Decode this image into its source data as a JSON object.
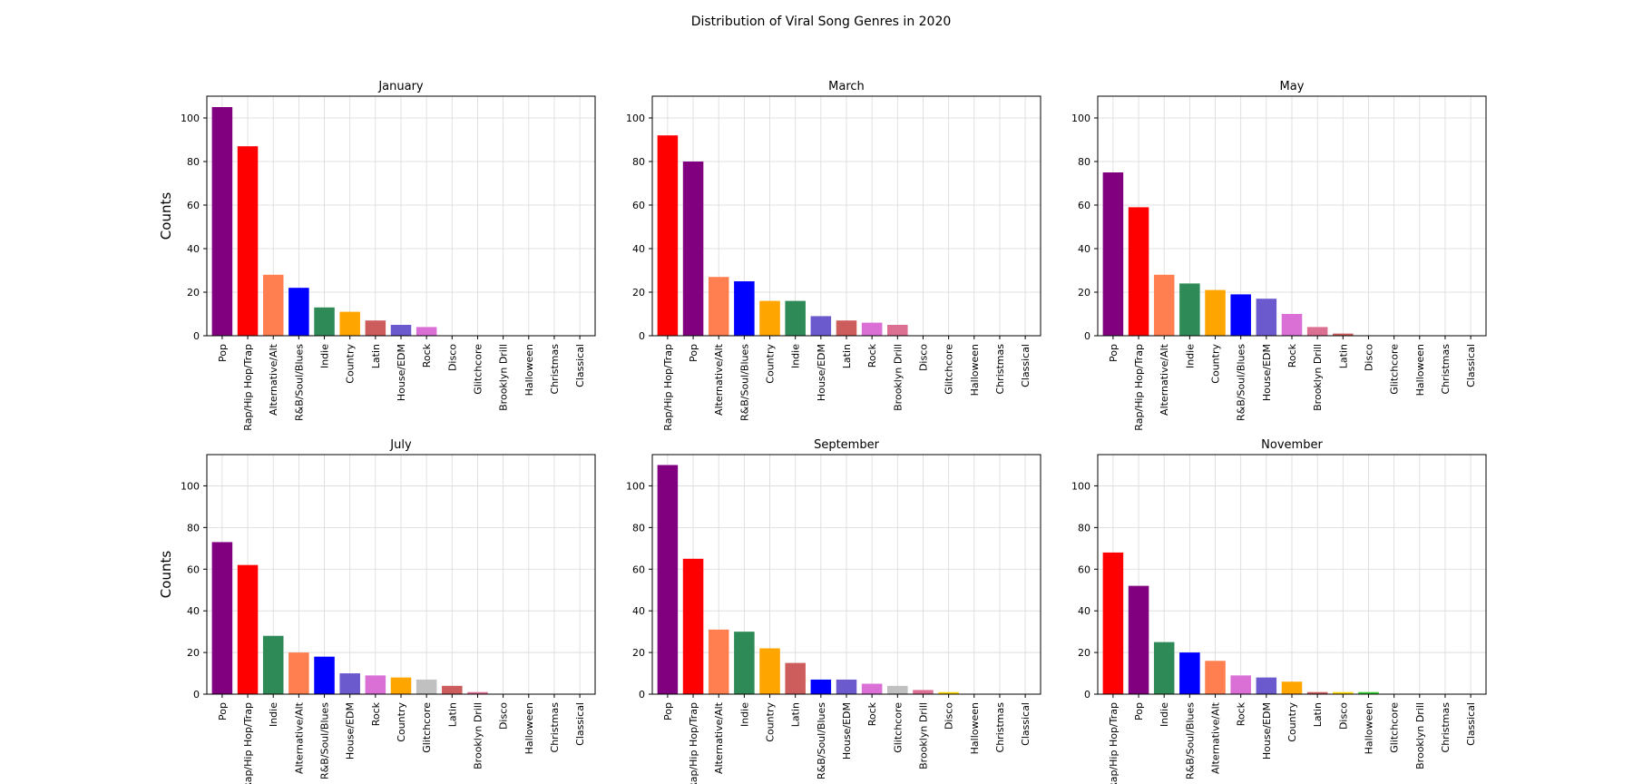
{
  "figure": {
    "title": "Distribution of Viral Song Genres in 2020"
  },
  "colors": {
    "Pop": "#800080",
    "Rap/Hip Hop/Trap": "#ff0000",
    "Alternative/Alt": "#ff7f50",
    "R&B/Soul/Blues": "#0000ff",
    "Indie": "#2e8b57",
    "Country": "#ffa500",
    "Latin": "#cd5c5c",
    "House/EDM": "#6a5acd",
    "Rock": "#da70d6",
    "Disco": "#ffd700",
    "Glitchcore": "#c0c0c0",
    "Brooklyn Drill": "#db7093",
    "Halloween": "#32cd32",
    "Christmas": "#8b0000",
    "Classical": "#8b4513"
  },
  "chart_data": [
    {
      "type": "bar",
      "title": "January",
      "ylabel": "Counts",
      "ylim": [
        0,
        110
      ],
      "yticks": [
        0,
        20,
        40,
        60,
        80,
        100
      ],
      "grid": true,
      "categories": [
        "Pop",
        "Rap/Hip Hop/Trap",
        "Alternative/Alt",
        "R&B/Soul/Blues",
        "Indie",
        "Country",
        "Latin",
        "House/EDM",
        "Rock",
        "Disco",
        "Glitchcore",
        "Brooklyn Drill",
        "Halloween",
        "Christmas",
        "Classical"
      ],
      "values": [
        105,
        87,
        28,
        22,
        13,
        11,
        7,
        5,
        4,
        0,
        0,
        0,
        0,
        0,
        0
      ]
    },
    {
      "type": "bar",
      "title": "March",
      "ylabel": "",
      "ylim": [
        0,
        110
      ],
      "yticks": [
        0,
        20,
        40,
        60,
        80,
        100
      ],
      "grid": true,
      "categories": [
        "Rap/Hip Hop/Trap",
        "Pop",
        "Alternative/Alt",
        "R&B/Soul/Blues",
        "Country",
        "Indie",
        "House/EDM",
        "Latin",
        "Rock",
        "Brooklyn Drill",
        "Disco",
        "Glitchcore",
        "Halloween",
        "Christmas",
        "Classical"
      ],
      "values": [
        92,
        80,
        27,
        25,
        16,
        16,
        9,
        7,
        6,
        5,
        0,
        0,
        0,
        0,
        0
      ]
    },
    {
      "type": "bar",
      "title": "May",
      "ylabel": "",
      "ylim": [
        0,
        110
      ],
      "yticks": [
        0,
        20,
        40,
        60,
        80,
        100
      ],
      "grid": true,
      "categories": [
        "Pop",
        "Rap/Hip Hop/Trap",
        "Alternative/Alt",
        "Indie",
        "Country",
        "R&B/Soul/Blues",
        "House/EDM",
        "Rock",
        "Brooklyn Drill",
        "Latin",
        "Disco",
        "Glitchcore",
        "Halloween",
        "Christmas",
        "Classical"
      ],
      "values": [
        75,
        59,
        28,
        24,
        21,
        19,
        17,
        10,
        4,
        1,
        0,
        0,
        0,
        0,
        0
      ]
    },
    {
      "type": "bar",
      "title": "July",
      "ylabel": "Counts",
      "ylim": [
        0,
        115
      ],
      "yticks": [
        0,
        20,
        40,
        60,
        80,
        100
      ],
      "grid": true,
      "categories": [
        "Pop",
        "Rap/Hip Hop/Trap",
        "Indie",
        "Alternative/Alt",
        "R&B/Soul/Blues",
        "House/EDM",
        "Rock",
        "Country",
        "Glitchcore",
        "Latin",
        "Brooklyn Drill",
        "Disco",
        "Halloween",
        "Christmas",
        "Classical"
      ],
      "values": [
        73,
        62,
        28,
        20,
        18,
        10,
        9,
        8,
        7,
        4,
        1,
        0,
        0,
        0,
        0
      ]
    },
    {
      "type": "bar",
      "title": "September",
      "ylabel": "",
      "ylim": [
        0,
        115
      ],
      "yticks": [
        0,
        20,
        40,
        60,
        80,
        100
      ],
      "grid": true,
      "categories": [
        "Pop",
        "Rap/Hip Hop/Trap",
        "Alternative/Alt",
        "Indie",
        "Country",
        "Latin",
        "R&B/Soul/Blues",
        "House/EDM",
        "Rock",
        "Glitchcore",
        "Brooklyn Drill",
        "Disco",
        "Halloween",
        "Christmas",
        "Classical"
      ],
      "values": [
        110,
        65,
        31,
        30,
        22,
        15,
        7,
        7,
        5,
        4,
        2,
        1,
        0,
        0,
        0
      ]
    },
    {
      "type": "bar",
      "title": "November",
      "ylabel": "",
      "ylim": [
        0,
        115
      ],
      "yticks": [
        0,
        20,
        40,
        60,
        80,
        100
      ],
      "grid": true,
      "categories": [
        "Rap/Hip Hop/Trap",
        "Pop",
        "Indie",
        "R&B/Soul/Blues",
        "Alternative/Alt",
        "Rock",
        "House/EDM",
        "Country",
        "Latin",
        "Disco",
        "Halloween",
        "Glitchcore",
        "Brooklyn Drill",
        "Christmas",
        "Classical"
      ],
      "values": [
        68,
        52,
        25,
        20,
        16,
        9,
        8,
        6,
        1,
        1,
        1,
        0,
        0,
        0,
        0
      ]
    }
  ]
}
